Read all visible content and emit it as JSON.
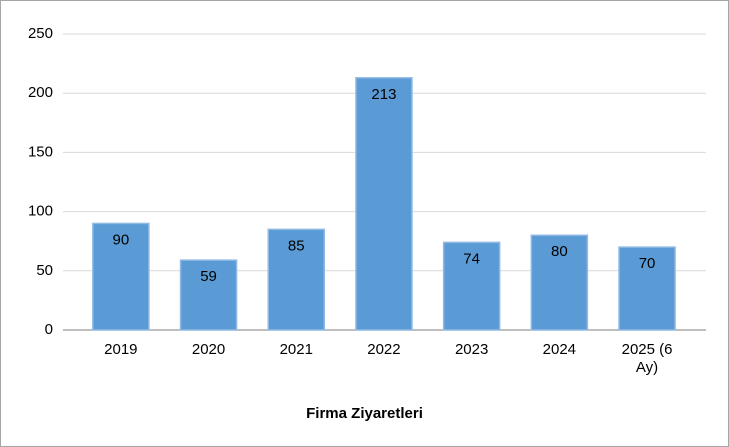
{
  "chart_data": {
    "type": "bar",
    "x_label": "Firma Ziyaretleri",
    "categories": [
      "2019",
      "2020",
      "2021",
      "2022",
      "2023",
      "2024",
      "2025 (6 Ay)"
    ],
    "values": [
      90,
      59,
      85,
      213,
      74,
      80,
      70
    ],
    "color": "#5b9bd5",
    "ylim": [
      0,
      250
    ],
    "yticks": [
      0,
      50,
      100,
      150,
      200,
      250
    ],
    "grid": true
  }
}
